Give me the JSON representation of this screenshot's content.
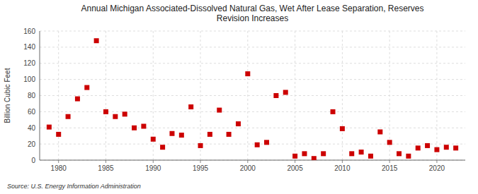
{
  "chart_data": {
    "type": "scatter",
    "title": "Annual Michigan Associated-Dissolved Natural Gas, Wet After Lease Separation, Reserves\nRevision Increases",
    "ylabel": "Billion Cubic Feet",
    "annotation": "Source: U.S. Energy Information Administration",
    "x": [
      1979,
      1980,
      1981,
      1982,
      1983,
      1984,
      1985,
      1986,
      1987,
      1988,
      1989,
      1990,
      1991,
      1992,
      1993,
      1994,
      1995,
      1996,
      1997,
      1998,
      1999,
      2000,
      2001,
      2002,
      2003,
      2004,
      2005,
      2006,
      2007,
      2008,
      2009,
      2010,
      2011,
      2012,
      2013,
      2014,
      2015,
      2016,
      2017,
      2018,
      2019,
      2020,
      2021,
      2022
    ],
    "values": [
      41,
      32,
      54,
      76,
      90,
      148,
      60,
      54,
      57,
      40,
      42,
      26,
      16,
      33,
      31,
      66,
      18,
      32,
      62,
      32,
      45,
      107,
      19,
      22,
      80,
      84,
      5,
      8,
      2,
      8,
      60,
      39,
      8,
      10,
      5,
      35,
      22,
      8,
      5,
      15,
      18,
      13,
      16,
      15
    ],
    "color": "#cc0000",
    "marker": "square",
    "xlim": [
      1978,
      2023
    ],
    "ylim": [
      0,
      160
    ],
    "xticks": [
      1980,
      1985,
      1990,
      1995,
      2000,
      2005,
      2010,
      2015,
      2020
    ],
    "yticks": [
      0,
      20,
      40,
      60,
      80,
      100,
      120,
      140,
      160
    ],
    "grid": true
  }
}
